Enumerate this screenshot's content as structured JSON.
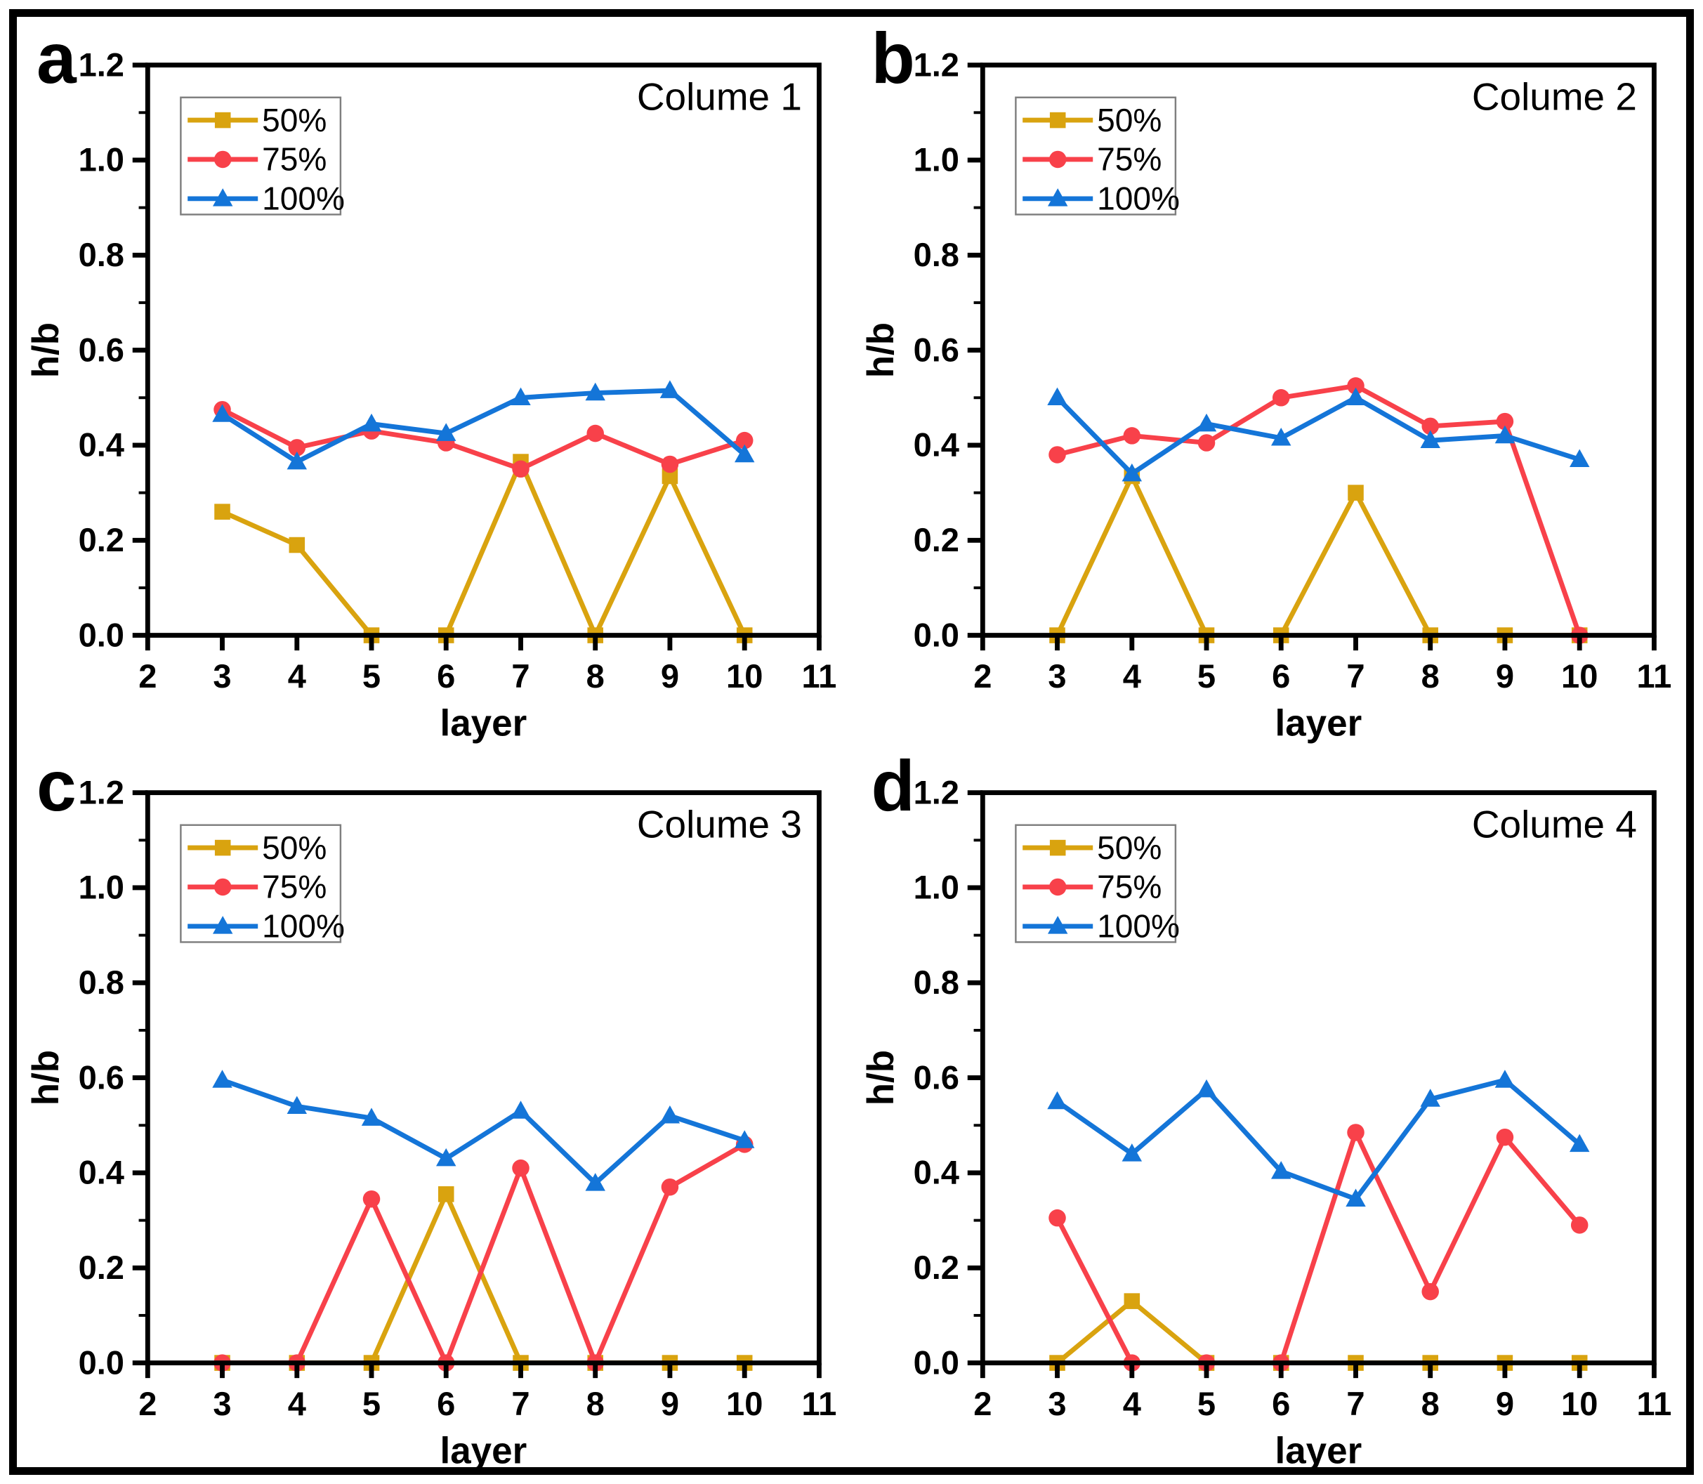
{
  "figure": {
    "background": "#ffffff",
    "border_color": "#000000",
    "panel_letters": [
      "a",
      "b",
      "c",
      "d"
    ]
  },
  "axes": {
    "xlim": [
      2,
      11
    ],
    "ylim": [
      0,
      1.2
    ],
    "xtick_labels": [
      "2",
      "3",
      "4",
      "5",
      "6",
      "7",
      "8",
      "9",
      "10",
      "11"
    ],
    "ytick_labels": [
      "0.0",
      "0.2",
      "0.4",
      "0.6",
      "0.8",
      "1.0",
      "1.2"
    ],
    "ytick_minor": [
      0.1,
      0.3,
      0.5,
      0.7,
      0.9,
      1.1
    ],
    "grid": false,
    "legend_position": "top-left"
  },
  "chart_data": [
    {
      "type": "line",
      "panel_label": "a",
      "title": "Colume 1",
      "xlabel": "layer",
      "ylabel": "h/b",
      "xlim": [
        2,
        11
      ],
      "ylim": [
        0,
        1.2
      ],
      "x": [
        3,
        4,
        5,
        6,
        7,
        8,
        9,
        10
      ],
      "series": [
        {
          "name": "50%",
          "marker": "square",
          "color": "#D9A30F",
          "values": [
            0.26,
            0.19,
            0.0,
            0.0,
            0.365,
            0.0,
            0.335,
            0.0
          ]
        },
        {
          "name": "75%",
          "marker": "circle",
          "color": "#F8414A",
          "values": [
            0.475,
            0.395,
            0.43,
            0.405,
            0.35,
            0.425,
            0.36,
            0.41
          ]
        },
        {
          "name": "100%",
          "marker": "triangle",
          "color": "#1475D8",
          "values": [
            0.465,
            0.365,
            0.445,
            0.425,
            0.5,
            0.51,
            0.515,
            0.38
          ]
        }
      ]
    },
    {
      "type": "line",
      "panel_label": "b",
      "title": "Colume 2",
      "xlabel": "layer",
      "ylabel": "h/b",
      "xlim": [
        2,
        11
      ],
      "ylim": [
        0,
        1.2
      ],
      "x": [
        3,
        4,
        5,
        6,
        7,
        8,
        9,
        10
      ],
      "series": [
        {
          "name": "50%",
          "marker": "square",
          "color": "#D9A30F",
          "values": [
            0.0,
            0.335,
            0.0,
            0.0,
            0.3,
            0.0,
            0.0,
            0.0
          ]
        },
        {
          "name": "75%",
          "marker": "circle",
          "color": "#F8414A",
          "values": [
            0.38,
            0.42,
            0.405,
            0.5,
            0.525,
            0.44,
            0.45,
            0.0
          ]
        },
        {
          "name": "100%",
          "marker": "triangle",
          "color": "#1475D8",
          "values": [
            0.5,
            0.34,
            0.445,
            0.415,
            0.5,
            0.41,
            0.42,
            0.37
          ]
        }
      ]
    },
    {
      "type": "line",
      "panel_label": "c",
      "title": "Colume 3",
      "xlabel": "layer",
      "ylabel": "h/b",
      "xlim": [
        2,
        11
      ],
      "ylim": [
        0,
        1.2
      ],
      "x": [
        3,
        4,
        5,
        6,
        7,
        8,
        9,
        10
      ],
      "series": [
        {
          "name": "50%",
          "marker": "square",
          "color": "#D9A30F",
          "values": [
            0.0,
            0.0,
            0.0,
            0.355,
            0.0,
            0.0,
            0.0,
            0.0
          ]
        },
        {
          "name": "75%",
          "marker": "circle",
          "color": "#F8414A",
          "values": [
            0.0,
            0.0,
            0.345,
            0.0,
            0.41,
            0.0,
            0.37,
            0.46
          ]
        },
        {
          "name": "100%",
          "marker": "triangle",
          "color": "#1475D8",
          "values": [
            0.595,
            0.54,
            0.515,
            0.43,
            0.53,
            0.378,
            0.52,
            0.468
          ]
        }
      ]
    },
    {
      "type": "line",
      "panel_label": "d",
      "title": "Colume 4",
      "xlabel": "layer",
      "ylabel": "h/b",
      "xlim": [
        2,
        11
      ],
      "ylim": [
        0,
        1.2
      ],
      "x": [
        3,
        4,
        5,
        6,
        7,
        8,
        9,
        10
      ],
      "series": [
        {
          "name": "50%",
          "marker": "square",
          "color": "#D9A30F",
          "values": [
            0.0,
            0.13,
            0.0,
            0.0,
            0.0,
            0.0,
            0.0,
            0.0
          ]
        },
        {
          "name": "75%",
          "marker": "circle",
          "color": "#F8414A",
          "values": [
            0.305,
            0.0,
            0.0,
            0.0,
            0.485,
            0.15,
            0.475,
            0.29
          ]
        },
        {
          "name": "100%",
          "marker": "triangle",
          "color": "#1475D8",
          "values": [
            0.55,
            0.44,
            0.575,
            0.403,
            0.345,
            0.555,
            0.595,
            0.46
          ]
        }
      ]
    }
  ]
}
